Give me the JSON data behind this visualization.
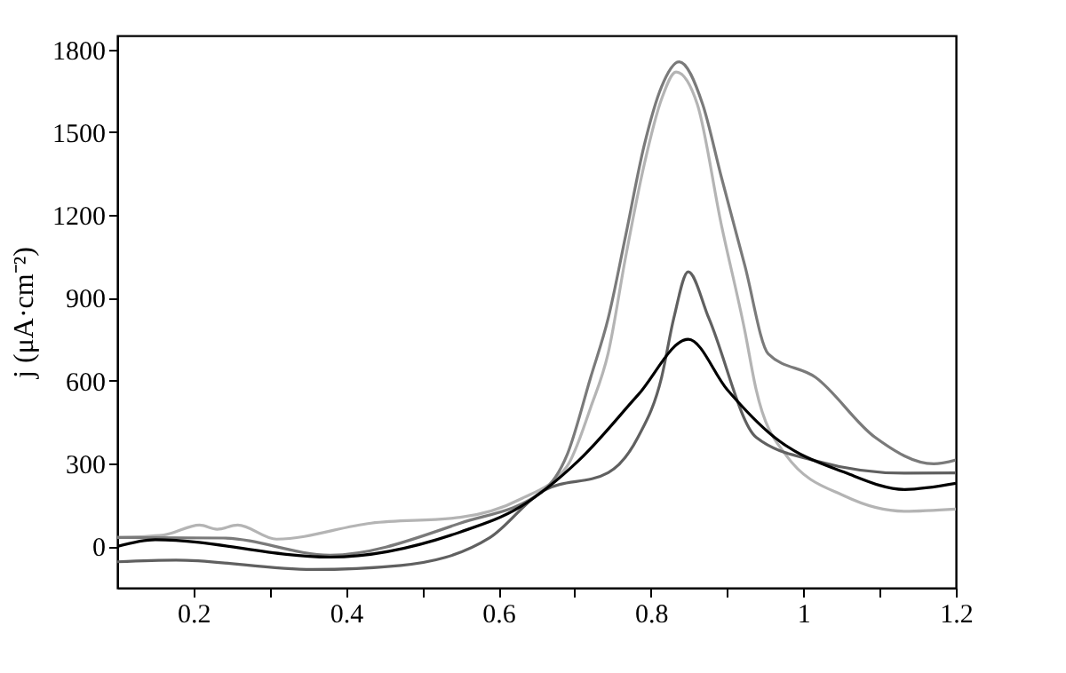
{
  "chart_data": {
    "type": "line",
    "ylabel": "j (μA·cm⁻²)",
    "xlim": [
      0.1,
      1.2
    ],
    "ylim": [
      -150,
      1850
    ],
    "xticks": [
      0.2,
      {
        "value": 0.3,
        "label": null
      },
      0.4,
      {
        "value": 0.5,
        "label": null
      },
      0.6,
      {
        "value": 0.7,
        "label": null
      },
      0.8,
      {
        "value": 0.9,
        "label": null
      },
      1,
      {
        "value": 1.1,
        "label": null
      },
      1.2
    ],
    "yticks": [
      0,
      300,
      600,
      900,
      1200,
      1500,
      1800
    ],
    "grid": false,
    "marker": "none",
    "line_style": "solid",
    "series": [
      {
        "color": "#b4b4b4",
        "x": [
          0.1,
          0.161,
          0.208,
          0.231,
          0.258,
          0.309,
          0.433,
          0.55,
          0.628,
          0.69,
          0.721,
          0.744,
          0.767,
          0.791,
          0.814,
          0.833,
          0.861,
          0.892,
          0.923,
          0.938,
          0.977,
          1.055,
          1.133,
          1.2
        ],
        "values": [
          32,
          41,
          77,
          62,
          77,
          26,
          84,
          105,
          170,
          290,
          503,
          700,
          1050,
          1380,
          1620,
          1718,
          1600,
          1170,
          783,
          568,
          331,
          181,
          127,
          135
        ]
      },
      {
        "color": "#7a7a7a",
        "x": [
          0.1,
          0.239,
          0.379,
          0.55,
          0.659,
          0.69,
          0.721,
          0.744,
          0.767,
          0.791,
          0.814,
          0.837,
          0.868,
          0.892,
          0.923,
          0.954,
          1.016,
          1.094,
          1.171,
          1.2
        ],
        "values": [
          32,
          30,
          -32,
          84,
          202,
          331,
          612,
          826,
          1127,
          1450,
          1665,
          1755,
          1600,
          1342,
          1019,
          697,
          612,
          395,
          299,
          313
        ]
      },
      {
        "color": "#606060",
        "x": [
          0.1,
          0.177,
          0.356,
          0.472,
          0.589,
          0.659,
          0.744,
          0.783,
          0.814,
          0.83,
          0.849,
          0.876,
          0.938,
          1.016,
          1.133,
          1.2
        ],
        "values": [
          -56,
          -50,
          -84,
          -69,
          32,
          202,
          267,
          395,
          612,
          826,
          994,
          826,
          395,
          310,
          265,
          266
        ]
      },
      {
        "color": "#000000",
        "x": [
          0.1,
          0.15,
          0.379,
          0.55,
          0.628,
          0.705,
          0.783,
          0.849,
          0.9,
          0.962,
          1.055,
          1.133,
          1.2
        ],
        "values": [
          0,
          24,
          -39,
          52,
          142,
          310,
          548,
          750,
          568,
          395,
          267,
          206,
          228
        ]
      }
    ]
  }
}
